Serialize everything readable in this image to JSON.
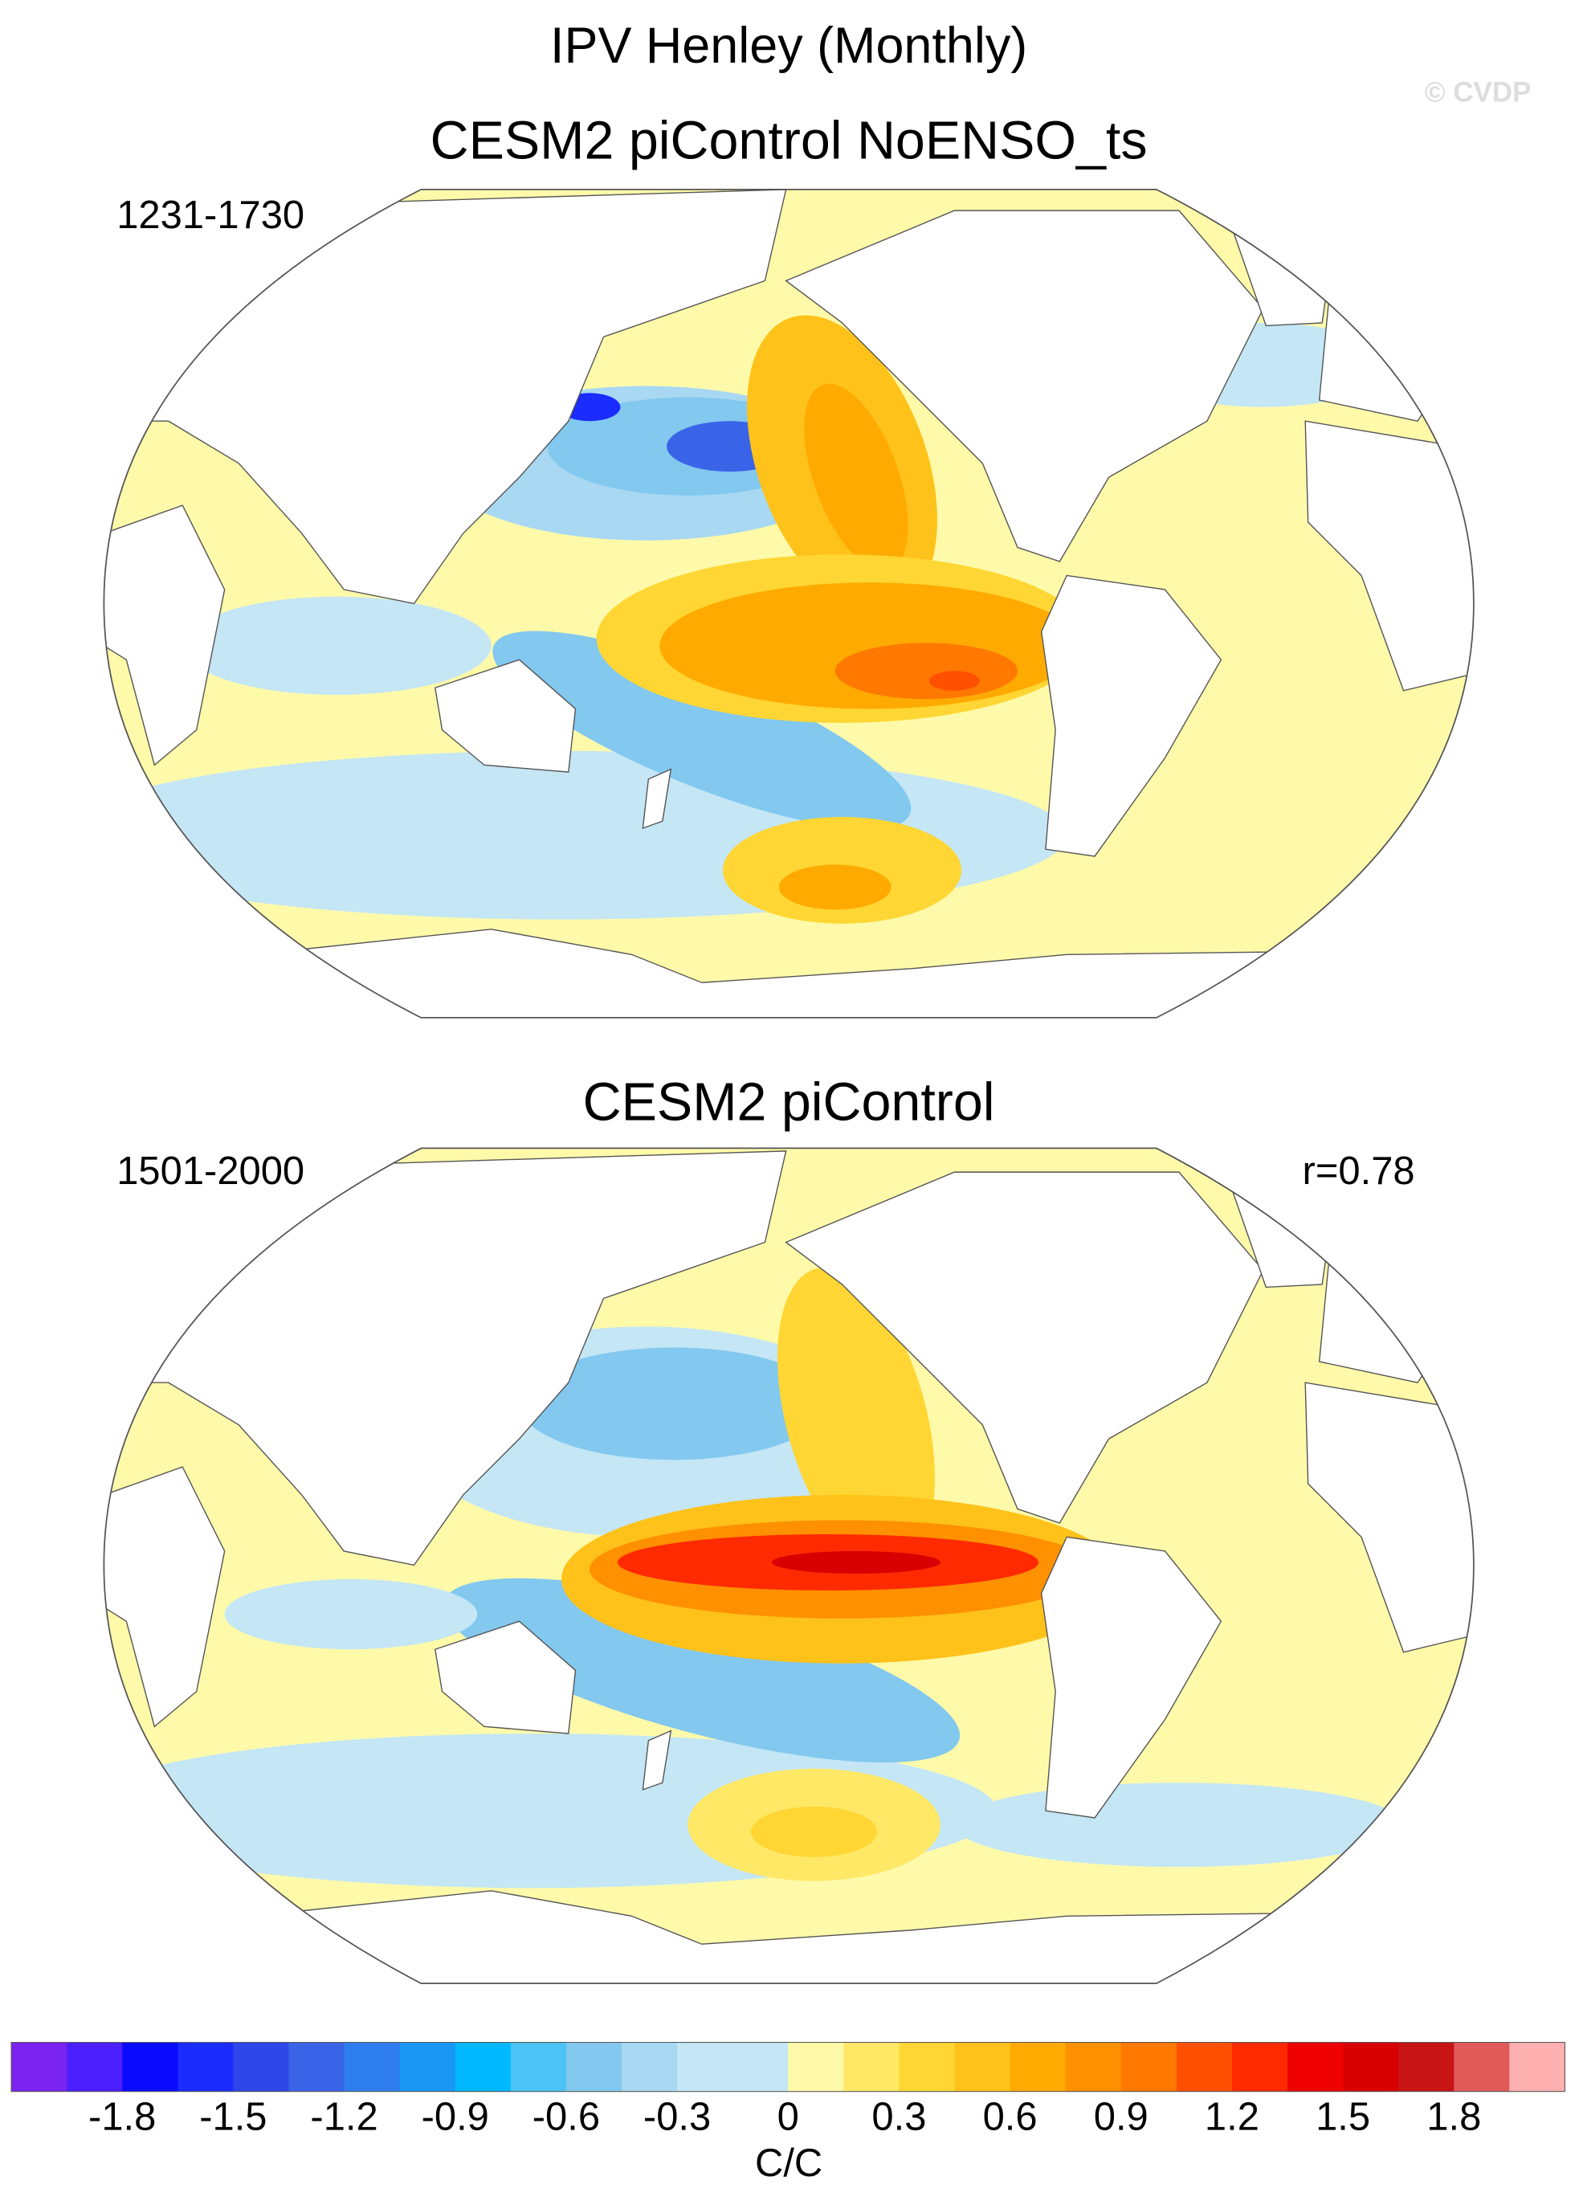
{
  "title": "IPV Henley (Monthly)",
  "watermark": "© CVDP",
  "panels": [
    {
      "title": "CESM2 piControl NoENSO_ts",
      "period": "1231-1730"
    },
    {
      "title": "CESM2 piControl",
      "period": "1501-2000",
      "correlation": "r=0.78"
    }
  ],
  "colorbar": {
    "unit": "C/C",
    "levels": [
      -1.95,
      -1.8,
      -1.65,
      -1.5,
      -1.35,
      -1.2,
      -1.05,
      -0.9,
      -0.75,
      -0.6,
      -0.45,
      -0.3,
      -0.15,
      0,
      0.15,
      0.3,
      0.45,
      0.6,
      0.75,
      0.9,
      1.05,
      1.2,
      1.35,
      1.5,
      1.65,
      1.8,
      1.95
    ],
    "colors": [
      "#7a22f0",
      "#4b1fff",
      "#0a0aff",
      "#1a2cff",
      "#2f46e8",
      "#3a64e8",
      "#2f7ef0",
      "#1a96f5",
      "#00b8ff",
      "#4cc4f5",
      "#82c8ef",
      "#a8d8f2",
      "#c4e6f5",
      "#c4e6f5",
      "#fffaaa",
      "#ffe866",
      "#ffd633",
      "#ffc21a",
      "#ffaa00",
      "#ff9000",
      "#ff7800",
      "#ff5000",
      "#ff2a00",
      "#ee0000",
      "#d80000",
      "#c81414",
      "#e05a5a",
      "#ffb0b0"
    ],
    "ticks": [
      -1.8,
      -1.5,
      -1.2,
      -0.9,
      -0.6,
      -0.3,
      0,
      0.3,
      0.6,
      0.9,
      1.2,
      1.5,
      1.8
    ]
  }
}
